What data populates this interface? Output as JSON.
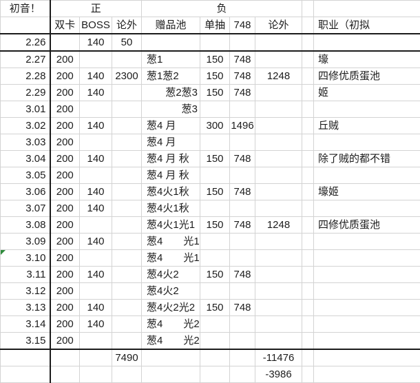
{
  "colors": {
    "error_indicator": "#2e8b3c",
    "grid_line": "#d3d3d3",
    "dark_border": "#1a1a1a",
    "text": "#1c1c1c"
  },
  "headers": {
    "title": "初音！",
    "positive_group": "正",
    "negative_group": "负",
    "columns": [
      "双卡",
      "BOSS",
      "论外",
      "赠品池",
      "单抽",
      "748",
      "论外",
      "职业（初拟"
    ]
  },
  "data_rows": [
    {
      "cells": [
        "2.26",
        "",
        "140",
        "50",
        "",
        "",
        "",
        "",
        "",
        ""
      ]
    },
    {
      "cells": [
        "2.27",
        "200",
        "",
        "",
        "葱1",
        "150",
        "748",
        "",
        "",
        "壕"
      ]
    },
    {
      "cells": [
        "2.28",
        "200",
        "140",
        "2300",
        "葱1葱2",
        "150",
        "748",
        "1248",
        "",
        "四修优质蛋池"
      ]
    },
    {
      "cells": [
        "2.29",
        "200",
        "140",
        "",
        "葱2葱3",
        "150",
        "748",
        "",
        "",
        "姬"
      ],
      "pool_align": "right"
    },
    {
      "cells": [
        "3.01",
        "200",
        "",
        "",
        "葱3",
        "",
        "",
        "",
        "",
        ""
      ],
      "pool_align": "right"
    },
    {
      "cells": [
        "3.02",
        "200",
        "140",
        "",
        "葱4 月",
        "300",
        "1496",
        "",
        "",
        "丘贼"
      ]
    },
    {
      "cells": [
        "3.03",
        "200",
        "",
        "",
        "葱4 月",
        "",
        "",
        "",
        "",
        ""
      ]
    },
    {
      "cells": [
        "3.04",
        "200",
        "140",
        "",
        "葱4 月 秋",
        "150",
        "748",
        "",
        "",
        "除了贼的都不错"
      ]
    },
    {
      "cells": [
        "3.05",
        "200",
        "",
        "",
        "葱4 月 秋",
        "",
        "",
        "",
        "",
        ""
      ]
    },
    {
      "cells": [
        "3.06",
        "200",
        "140",
        "",
        "葱4火1秋",
        "150",
        "748",
        "",
        "",
        "壕姬"
      ]
    },
    {
      "cells": [
        "3.07",
        "200",
        "140",
        "",
        "葱4火1秋",
        "",
        "",
        "",
        "",
        ""
      ]
    },
    {
      "cells": [
        "3.08",
        "200",
        "",
        "",
        "葱4火1光1",
        "150",
        "748",
        "1248",
        "",
        "四修优质蛋池"
      ]
    },
    {
      "cells": [
        "3.09",
        "200",
        "140",
        "",
        "葱4　　光1",
        "",
        "",
        "",
        "",
        ""
      ]
    },
    {
      "cells": [
        "3.10",
        "200",
        "",
        "",
        "葱4　　光1",
        "",
        "",
        "",
        "",
        ""
      ],
      "indicator": "green-corner"
    },
    {
      "cells": [
        "3.11",
        "200",
        "140",
        "",
        "葱4火2",
        "150",
        "748",
        "",
        "",
        ""
      ]
    },
    {
      "cells": [
        "3.12",
        "200",
        "",
        "",
        "葱4火2",
        "",
        "",
        "",
        "",
        ""
      ]
    },
    {
      "cells": [
        "3.13",
        "200",
        "140",
        "",
        "葱4火2光2",
        "150",
        "748",
        "",
        "",
        ""
      ]
    },
    {
      "cells": [
        "3.14",
        "200",
        "140",
        "",
        "葱4　　光2",
        "",
        "",
        "",
        "",
        ""
      ]
    },
    {
      "cells": [
        "3.15",
        "200",
        "",
        "",
        "葱4　　光2",
        "",
        "",
        "",
        "",
        ""
      ]
    }
  ],
  "total_rows": [
    {
      "cells": [
        "",
        "",
        "",
        "7490",
        "",
        "",
        "",
        "-11476",
        "",
        ""
      ]
    },
    {
      "cells": [
        "",
        "",
        "",
        "",
        "",
        "",
        "",
        "-3986",
        "",
        ""
      ]
    }
  ]
}
